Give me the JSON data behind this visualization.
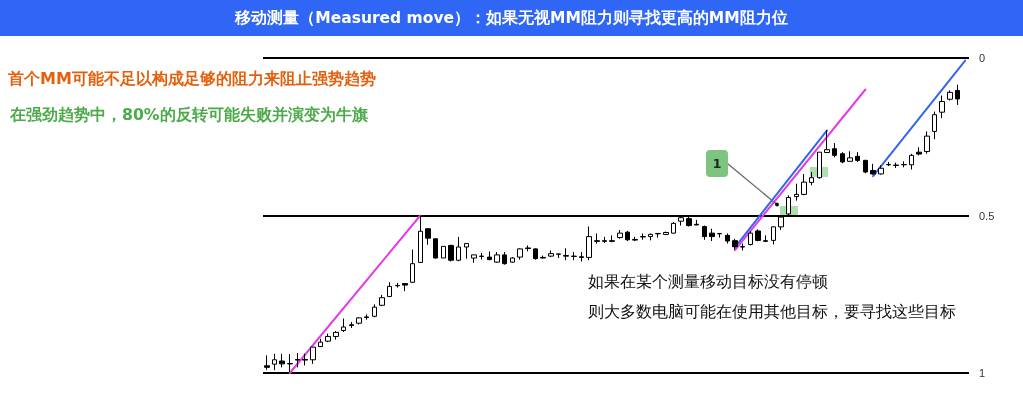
{
  "chart_data": {
    "type": "candlestick",
    "title": "移动测量（Measured move）：如果无视MM阻力则寻找更高的MM阻力位",
    "marker": "none",
    "grid": "y",
    "ylim": [
      1,
      0
    ],
    "yticks": [
      0,
      0.5,
      1
    ],
    "categories": [
      null,
      null,
      null,
      null,
      null,
      null,
      null,
      null,
      null,
      null,
      null,
      null,
      null,
      null,
      null,
      null,
      null,
      null,
      null,
      null,
      null,
      null,
      null,
      null,
      null,
      null,
      null,
      null,
      null,
      null,
      null,
      null,
      null,
      null,
      null,
      null,
      null,
      null,
      null,
      null,
      null,
      null,
      null,
      null,
      null,
      null,
      null,
      null,
      null,
      null,
      null,
      null,
      null,
      null,
      null,
      null,
      null,
      null,
      null,
      null,
      null,
      null,
      null,
      null,
      null,
      null,
      null,
      null,
      null,
      null,
      null,
      null,
      null,
      null,
      null,
      null,
      null,
      null,
      null,
      null,
      null,
      null,
      null,
      null,
      null,
      null,
      null,
      null,
      null,
      null,
      null,
      null
    ],
    "ohlc": [
      [
        0.977,
        0.99,
        0.944,
        0.982
      ],
      [
        0.972,
        0.991,
        0.939,
        0.958
      ],
      [
        0.962,
        0.982,
        0.939,
        0.971
      ],
      [
        0.97,
        0.997,
        0.94,
        0.971
      ],
      [
        0.957,
        0.982,
        0.937,
        0.959
      ],
      [
        0.957,
        0.976,
        0.939,
        0.959
      ],
      [
        0.958,
        0.971,
        0.918,
        0.918
      ],
      [
        0.916,
        0.918,
        0.891,
        0.902
      ],
      [
        0.899,
        0.902,
        0.875,
        0.884
      ],
      [
        0.884,
        0.894,
        0.867,
        0.871
      ],
      [
        0.865,
        0.87,
        0.827,
        0.854
      ],
      [
        0.847,
        0.857,
        0.838,
        0.849
      ],
      [
        0.842,
        0.846,
        0.823,
        0.825
      ],
      [
        0.822,
        0.831,
        0.814,
        0.824
      ],
      [
        0.82,
        0.823,
        0.782,
        0.791
      ],
      [
        0.785,
        0.788,
        0.752,
        0.761
      ],
      [
        0.757,
        0.759,
        0.712,
        0.725
      ],
      [
        0.722,
        0.729,
        0.714,
        0.723
      ],
      [
        0.716,
        0.74,
        0.714,
        0.721
      ],
      [
        0.712,
        0.714,
        0.608,
        0.653
      ],
      [
        0.649,
        0.651,
        0.5,
        0.55
      ],
      [
        0.542,
        0.593,
        0.541,
        0.572
      ],
      [
        0.574,
        0.637,
        0.573,
        0.635
      ],
      [
        0.635,
        0.635,
        0.598,
        0.598
      ],
      [
        0.595,
        0.646,
        0.593,
        0.642
      ],
      [
        0.642,
        0.645,
        0.568,
        0.6
      ],
      [
        0.6,
        0.637,
        0.589,
        0.589
      ],
      [
        0.635,
        0.65,
        0.625,
        0.625
      ],
      [
        0.629,
        0.64,
        0.619,
        0.63
      ],
      [
        0.632,
        0.642,
        0.614,
        0.64
      ],
      [
        0.648,
        0.65,
        0.616,
        0.625
      ],
      [
        0.625,
        0.656,
        0.616,
        0.653
      ],
      [
        0.648,
        0.65,
        0.632,
        0.635
      ],
      [
        0.632,
        0.64,
        0.604,
        0.606
      ],
      [
        0.603,
        0.614,
        0.595,
        0.605
      ],
      [
        0.606,
        0.64,
        0.604,
        0.637
      ],
      [
        0.633,
        0.637,
        0.627,
        0.635
      ],
      [
        0.629,
        0.632,
        0.611,
        0.621
      ],
      [
        0.623,
        0.635,
        0.622,
        0.622
      ],
      [
        0.627,
        0.642,
        0.604,
        0.629
      ],
      [
        0.629,
        0.642,
        0.616,
        0.63
      ],
      [
        0.631,
        0.646,
        0.616,
        0.633
      ],
      [
        0.633,
        0.642,
        0.535,
        0.567
      ],
      [
        0.58,
        0.589,
        0.557,
        0.582
      ],
      [
        0.58,
        0.587,
        0.568,
        0.582
      ],
      [
        0.58,
        0.585,
        0.563,
        0.582
      ],
      [
        0.57,
        0.574,
        0.546,
        0.556
      ],
      [
        0.553,
        0.581,
        0.549,
        0.577
      ],
      [
        0.576,
        0.581,
        0.568,
        0.578
      ],
      [
        0.567,
        0.577,
        0.557,
        0.568
      ],
      [
        0.567,
        0.579,
        0.557,
        0.56
      ],
      [
        0.558,
        0.57,
        0.557,
        0.557
      ],
      [
        0.56,
        0.562,
        0.551,
        0.554
      ],
      [
        0.556,
        0.557,
        0.521,
        0.525
      ],
      [
        0.518,
        0.532,
        0.505,
        0.507
      ],
      [
        0.51,
        0.535,
        0.505,
        0.532
      ],
      [
        0.528,
        0.531,
        0.514,
        0.53
      ],
      [
        0.535,
        0.577,
        0.532,
        0.567
      ],
      [
        0.556,
        0.581,
        0.542,
        0.567
      ],
      [
        0.558,
        0.57,
        0.557,
        0.557
      ],
      [
        0.563,
        0.589,
        0.557,
        0.581
      ],
      [
        0.58,
        0.608,
        0.574,
        0.599
      ],
      [
        0.599,
        0.611,
        0.589,
        0.6
      ],
      [
        0.592,
        0.595,
        0.55,
        0.556
      ],
      [
        0.549,
        0.582,
        0.544,
        0.579
      ],
      [
        0.58,
        0.584,
        0.563,
        0.582
      ],
      [
        0.579,
        0.592,
        0.535,
        0.536
      ],
      [
        0.536,
        0.546,
        0.5,
        0.505
      ],
      [
        0.495,
        0.5,
        0.436,
        0.443
      ],
      [
        0.44,
        0.453,
        0.399,
        0.433
      ],
      [
        0.433,
        0.436,
        0.368,
        0.394
      ],
      [
        0.395,
        0.404,
        0.362,
        0.38
      ],
      [
        0.38,
        0.383,
        0.299,
        0.299
      ],
      [
        0.3,
        0.302,
        0.23,
        0.291
      ],
      [
        0.288,
        0.315,
        0.27,
        0.309
      ],
      [
        0.304,
        0.334,
        0.299,
        0.33
      ],
      [
        0.328,
        0.33,
        0.296,
        0.317
      ],
      [
        0.312,
        0.33,
        0.299,
        0.325
      ],
      [
        0.325,
        0.366,
        0.323,
        0.362
      ],
      [
        0.357,
        0.37,
        0.336,
        0.368
      ],
      [
        0.368,
        0.37,
        0.341,
        0.35
      ],
      [
        0.338,
        0.343,
        0.33,
        0.339
      ],
      [
        0.34,
        0.349,
        0.332,
        0.341
      ],
      [
        0.338,
        0.347,
        0.328,
        0.339
      ],
      [
        0.339,
        0.354,
        0.304,
        0.309
      ],
      [
        0.299,
        0.309,
        0.283,
        0.305
      ],
      [
        0.297,
        0.304,
        0.233,
        0.248
      ],
      [
        0.233,
        0.258,
        0.17,
        0.18
      ],
      [
        0.172,
        0.191,
        0.119,
        0.138
      ],
      [
        0.131,
        0.135,
        0.103,
        0.109
      ],
      [
        0.103,
        0.149,
        0.085,
        0.13
      ],
      null
    ],
    "series": [
      {
        "type": "line",
        "color": "#e33de6",
        "values": [
          null,
          null,
          null,
          1,
          null,
          null,
          null,
          null,
          null,
          null,
          null,
          null,
          null,
          null,
          null,
          null,
          null,
          null,
          null,
          null,
          0.5,
          null,
          null,
          null,
          null,
          null,
          null,
          null,
          null,
          null,
          null,
          null,
          null,
          null,
          null,
          null,
          null,
          null,
          null,
          null,
          null,
          null,
          null,
          null,
          null,
          null,
          null,
          null,
          null,
          null,
          null,
          null,
          null,
          null,
          null,
          null,
          null,
          null,
          null,
          null,
          null,
          null,
          null,
          null,
          null,
          null,
          null,
          null,
          null,
          null,
          null,
          null,
          null,
          null,
          null,
          null,
          null,
          null,
          null,
          null,
          null,
          null,
          null,
          null,
          null,
          null,
          null,
          null,
          null,
          null,
          null,
          null
        ]
      },
      {
        "type": "line",
        "color": "#3366ee",
        "values": [
          null,
          null,
          null,
          null,
          null,
          null,
          null,
          null,
          null,
          null,
          null,
          null,
          null,
          null,
          null,
          null,
          null,
          null,
          null,
          null,
          null,
          null,
          null,
          null,
          null,
          null,
          null,
          null,
          null,
          null,
          null,
          null,
          null,
          null,
          null,
          null,
          null,
          null,
          null,
          null,
          null,
          null,
          null,
          null,
          null,
          null,
          null,
          null,
          null,
          null,
          null,
          null,
          null,
          null,
          null,
          null,
          null,
          null,
          null,
          null,
          null,
          0.601,
          null,
          null,
          null,
          null,
          null,
          null,
          null,
          null,
          null,
          null,
          null,
          0.23,
          null,
          null,
          null,
          null,
          null,
          null,
          null,
          null,
          null,
          null,
          null,
          null,
          null,
          null,
          null,
          null,
          null,
          null
        ]
      },
      {
        "type": "line",
        "color": "#e33de6",
        "values": [
          null,
          null,
          null,
          null,
          null,
          null,
          null,
          null,
          null,
          null,
          null,
          null,
          null,
          null,
          null,
          null,
          null,
          null,
          null,
          null,
          null,
          null,
          null,
          null,
          null,
          null,
          null,
          null,
          null,
          null,
          null,
          null,
          null,
          null,
          null,
          null,
          null,
          null,
          null,
          null,
          null,
          null,
          null,
          null,
          null,
          null,
          null,
          null,
          null,
          null,
          null,
          null,
          null,
          null,
          null,
          null,
          null,
          null,
          null,
          null,
          null,
          0.61,
          null,
          null,
          null,
          null,
          null,
          null,
          null,
          null,
          null,
          null,
          null,
          null,
          null,
          null,
          null,
          null,
          0.1,
          null,
          null,
          null,
          null,
          null,
          null,
          null,
          null,
          null,
          null,
          null,
          null,
          null
        ]
      },
      {
        "type": "line",
        "color": "#3366ee",
        "values": [
          null,
          null,
          null,
          null,
          null,
          null,
          null,
          null,
          null,
          null,
          null,
          null,
          null,
          null,
          null,
          null,
          null,
          null,
          null,
          null,
          null,
          null,
          null,
          null,
          null,
          null,
          null,
          null,
          null,
          null,
          null,
          null,
          null,
          null,
          null,
          null,
          null,
          null,
          null,
          null,
          null,
          null,
          null,
          null,
          null,
          null,
          null,
          null,
          null,
          null,
          null,
          null,
          null,
          null,
          null,
          null,
          null,
          null,
          null,
          null,
          null,
          null,
          null,
          null,
          null,
          null,
          null,
          null,
          null,
          null,
          null,
          null,
          null,
          null,
          null,
          null,
          null,
          null,
          null,
          0.375,
          null,
          null,
          null,
          null,
          null,
          null,
          null,
          null,
          null,
          null,
          null,
          0.008
        ]
      }
    ],
    "annotations": [
      "首个MM可能不足以构成足够的阻力来阻止强势趋势",
      "在强劲趋势中，80%的反转可能失败并演变为牛旗",
      "如果在某个测量移动目标没有停顿",
      "则大多数电脑可能在使用其他目标，要寻找这些目标",
      "1"
    ]
  }
}
